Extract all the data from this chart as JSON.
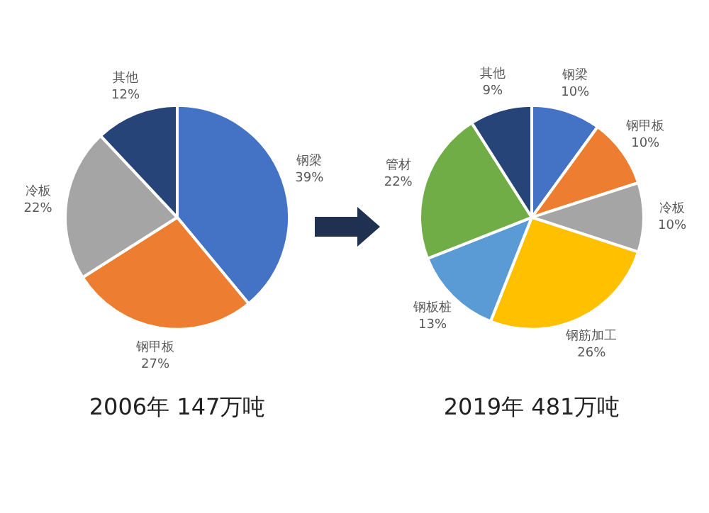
{
  "chart_data": [
    {
      "type": "pie",
      "title": "2006年 147万吨",
      "categories": [
        "钢梁",
        "钢甲板",
        "冷板",
        "其他"
      ],
      "values": [
        39,
        27,
        22,
        12
      ],
      "colors": [
        "#4472c4",
        "#ed7d31",
        "#a5a5a5",
        "#264478"
      ],
      "value_labels": [
        "39%",
        "27%",
        "22%",
        "12%"
      ],
      "legend": false
    },
    {
      "type": "pie",
      "title": "2019年 481万吨",
      "categories": [
        "钢梁",
        "钢甲板",
        "冷板",
        "钢筋加工",
        "钢板桩",
        "管材",
        "其他"
      ],
      "values": [
        10,
        10,
        10,
        26,
        13,
        22,
        9
      ],
      "colors": [
        "#4472c4",
        "#ed7d31",
        "#a5a5a5",
        "#ffc000",
        "#5b9bd5",
        "#70ad47",
        "#264478"
      ],
      "value_labels": [
        "10%",
        "10%",
        "10%",
        "26%",
        "13%",
        "22%",
        "9%"
      ],
      "legend": false
    }
  ]
}
